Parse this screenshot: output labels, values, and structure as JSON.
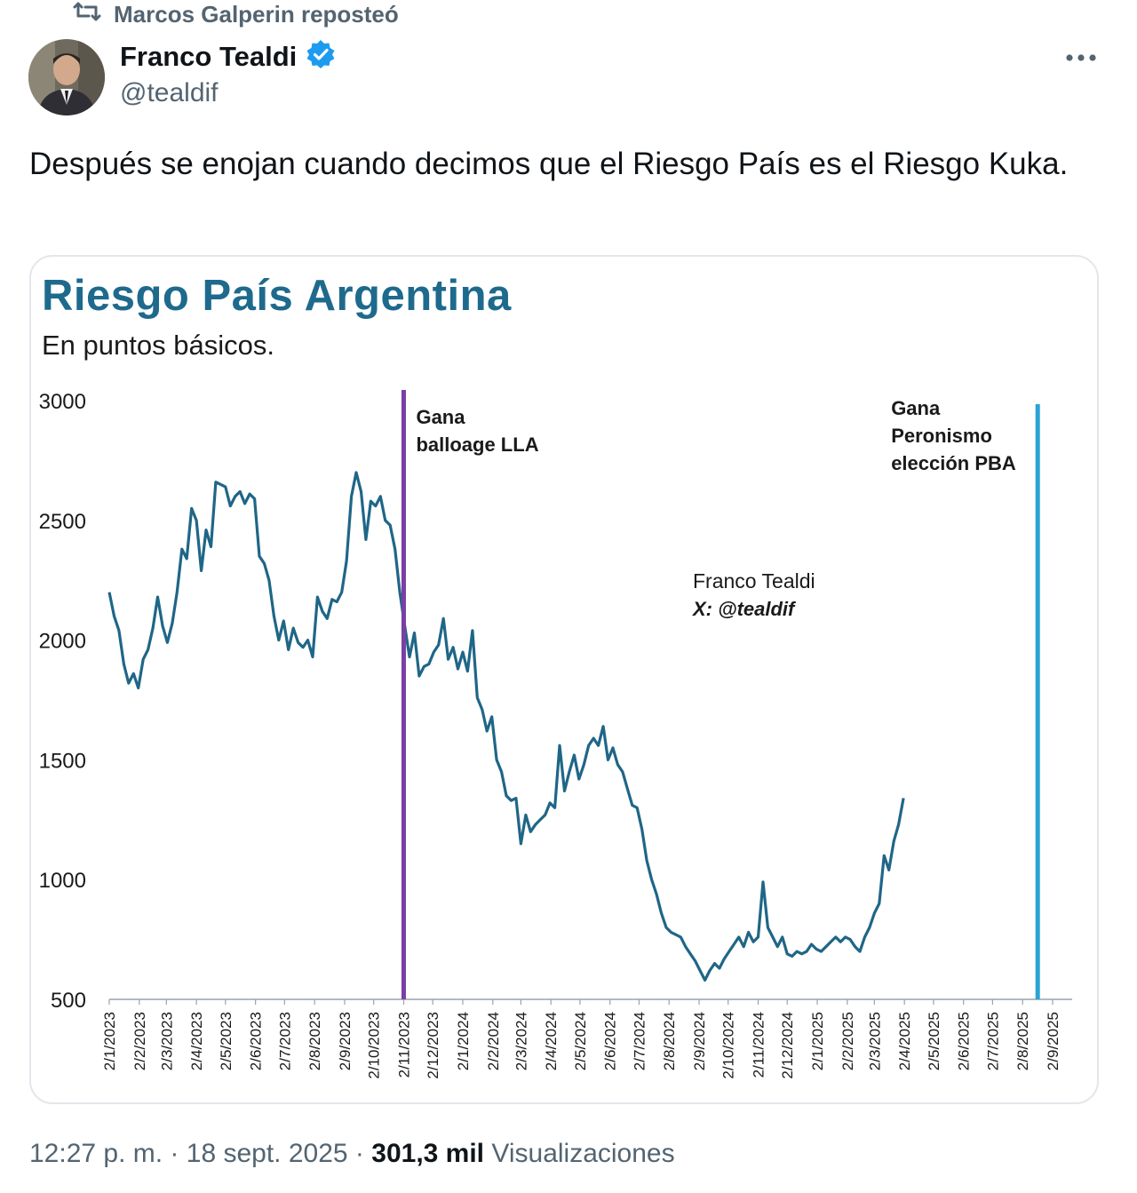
{
  "repost": {
    "text": "Marcos Galperin reposteó",
    "icon": "repost-icon"
  },
  "author": {
    "display_name": "Franco Tealdi",
    "handle": "@tealdif",
    "verified": true,
    "verified_color": "#1d9bf0",
    "avatar_icon": "avatar-photo"
  },
  "more_icon": "more-options-icon",
  "tweet": {
    "text": "Después se enojan cuando decimos que el Riesgo País es el Riesgo Kuka."
  },
  "chart_card": {
    "title": "Riesgo País Argentina",
    "subtitle": "En puntos básicos.",
    "watermark_name": "Franco Tealdi",
    "watermark_handle": "X: @tealdif",
    "title_color": "#1e6a8d",
    "line_color": "#1f6687"
  },
  "chart_data": {
    "type": "line",
    "title": "Riesgo País Argentina",
    "subtitle": "En puntos básicos.",
    "xlabel": "",
    "ylabel": "",
    "ylim": [
      500,
      3000
    ],
    "yticks": [
      3000,
      2500,
      2000,
      1500,
      1000,
      500
    ],
    "x_tick_labels": [
      "2/1/2023",
      "2/2/2023",
      "2/3/2023",
      "2/4/2023",
      "2/5/2023",
      "2/6/2023",
      "2/7/2023",
      "2/8/2023",
      "2/9/2023",
      "2/10/2023",
      "2/11/2023",
      "2/12/2023",
      "2/1/2024",
      "2/2/2024",
      "2/3/2024",
      "2/4/2024",
      "2/5/2024",
      "2/6/2024",
      "2/7/2024",
      "2/8/2024",
      "2/9/2024",
      "2/10/2024",
      "2/11/2024",
      "2/12/2024",
      "2/1/2025",
      "2/2/2025",
      "2/3/2025",
      "2/4/2025",
      "2/5/2025",
      "2/6/2025",
      "2/7/2025",
      "2/8/2025",
      "2/9/2025"
    ],
    "grid": false,
    "series": [
      {
        "color": "#1f6687",
        "points": [
          [
            "2023-01-02",
            2200
          ],
          [
            "2023-01-07",
            2100
          ],
          [
            "2023-01-12",
            2040
          ],
          [
            "2023-01-17",
            1900
          ],
          [
            "2023-01-22",
            1820
          ],
          [
            "2023-01-27",
            1860
          ],
          [
            "2023-02-01",
            1800
          ],
          [
            "2023-02-06",
            1920
          ],
          [
            "2023-02-11",
            1960
          ],
          [
            "2023-02-16",
            2050
          ],
          [
            "2023-02-21",
            2180
          ],
          [
            "2023-02-26",
            2060
          ],
          [
            "2023-03-03",
            1990
          ],
          [
            "2023-03-08",
            2070
          ],
          [
            "2023-03-13",
            2200
          ],
          [
            "2023-03-18",
            2380
          ],
          [
            "2023-03-23",
            2340
          ],
          [
            "2023-03-28",
            2550
          ],
          [
            "2023-04-02",
            2500
          ],
          [
            "2023-04-07",
            2290
          ],
          [
            "2023-04-12",
            2460
          ],
          [
            "2023-04-17",
            2390
          ],
          [
            "2023-04-22",
            2660
          ],
          [
            "2023-05-02",
            2640
          ],
          [
            "2023-05-07",
            2560
          ],
          [
            "2023-05-12",
            2600
          ],
          [
            "2023-05-17",
            2620
          ],
          [
            "2023-05-22",
            2570
          ],
          [
            "2023-05-27",
            2610
          ],
          [
            "2023-06-01",
            2590
          ],
          [
            "2023-06-06",
            2350
          ],
          [
            "2023-06-11",
            2320
          ],
          [
            "2023-06-16",
            2250
          ],
          [
            "2023-06-21",
            2100
          ],
          [
            "2023-06-26",
            2000
          ],
          [
            "2023-07-01",
            2080
          ],
          [
            "2023-07-06",
            1960
          ],
          [
            "2023-07-11",
            2050
          ],
          [
            "2023-07-16",
            1990
          ],
          [
            "2023-07-21",
            1970
          ],
          [
            "2023-07-26",
            2000
          ],
          [
            "2023-07-31",
            1930
          ],
          [
            "2023-08-05",
            2180
          ],
          [
            "2023-08-10",
            2120
          ],
          [
            "2023-08-15",
            2090
          ],
          [
            "2023-08-20",
            2170
          ],
          [
            "2023-08-25",
            2160
          ],
          [
            "2023-08-30",
            2200
          ],
          [
            "2023-09-04",
            2330
          ],
          [
            "2023-09-09",
            2600
          ],
          [
            "2023-09-14",
            2700
          ],
          [
            "2023-09-19",
            2620
          ],
          [
            "2023-09-24",
            2420
          ],
          [
            "2023-09-29",
            2580
          ],
          [
            "2023-10-04",
            2560
          ],
          [
            "2023-10-09",
            2600
          ],
          [
            "2023-10-14",
            2500
          ],
          [
            "2023-10-19",
            2480
          ],
          [
            "2023-10-24",
            2380
          ],
          [
            "2023-10-29",
            2200
          ],
          [
            "2023-11-03",
            2060
          ],
          [
            "2023-11-08",
            1930
          ],
          [
            "2023-11-13",
            2030
          ],
          [
            "2023-11-18",
            1850
          ],
          [
            "2023-11-23",
            1890
          ],
          [
            "2023-11-28",
            1900
          ],
          [
            "2023-12-03",
            1950
          ],
          [
            "2023-12-08",
            1980
          ],
          [
            "2023-12-13",
            2090
          ],
          [
            "2023-12-18",
            1920
          ],
          [
            "2023-12-23",
            1970
          ],
          [
            "2023-12-28",
            1880
          ],
          [
            "2024-01-02",
            1950
          ],
          [
            "2024-01-07",
            1870
          ],
          [
            "2024-01-12",
            2040
          ],
          [
            "2024-01-17",
            1760
          ],
          [
            "2024-01-22",
            1710
          ],
          [
            "2024-01-27",
            1620
          ],
          [
            "2024-02-01",
            1680
          ],
          [
            "2024-02-06",
            1500
          ],
          [
            "2024-02-11",
            1450
          ],
          [
            "2024-02-16",
            1350
          ],
          [
            "2024-02-21",
            1330
          ],
          [
            "2024-02-26",
            1340
          ],
          [
            "2024-03-02",
            1150
          ],
          [
            "2024-03-07",
            1270
          ],
          [
            "2024-03-12",
            1200
          ],
          [
            "2024-03-17",
            1230
          ],
          [
            "2024-03-22",
            1250
          ],
          [
            "2024-03-27",
            1270
          ],
          [
            "2024-04-01",
            1320
          ],
          [
            "2024-04-06",
            1300
          ],
          [
            "2024-04-11",
            1560
          ],
          [
            "2024-04-16",
            1370
          ],
          [
            "2024-04-21",
            1450
          ],
          [
            "2024-04-26",
            1520
          ],
          [
            "2024-05-01",
            1420
          ],
          [
            "2024-05-06",
            1480
          ],
          [
            "2024-05-11",
            1560
          ],
          [
            "2024-05-16",
            1590
          ],
          [
            "2024-05-21",
            1560
          ],
          [
            "2024-05-26",
            1640
          ],
          [
            "2024-05-31",
            1500
          ],
          [
            "2024-06-05",
            1550
          ],
          [
            "2024-06-10",
            1480
          ],
          [
            "2024-06-15",
            1450
          ],
          [
            "2024-06-20",
            1380
          ],
          [
            "2024-06-25",
            1310
          ],
          [
            "2024-06-30",
            1300
          ],
          [
            "2024-07-05",
            1210
          ],
          [
            "2024-07-10",
            1080
          ],
          [
            "2024-07-15",
            1000
          ],
          [
            "2024-07-20",
            940
          ],
          [
            "2024-07-25",
            860
          ],
          [
            "2024-07-30",
            800
          ],
          [
            "2024-08-04",
            780
          ],
          [
            "2024-08-09",
            770
          ],
          [
            "2024-08-14",
            760
          ],
          [
            "2024-08-19",
            720
          ],
          [
            "2024-08-24",
            690
          ],
          [
            "2024-08-29",
            660
          ],
          [
            "2024-09-03",
            620
          ],
          [
            "2024-09-08",
            580
          ],
          [
            "2024-09-13",
            620
          ],
          [
            "2024-09-18",
            650
          ],
          [
            "2024-09-23",
            630
          ],
          [
            "2024-09-28",
            670
          ],
          [
            "2024-10-03",
            700
          ],
          [
            "2024-10-08",
            730
          ],
          [
            "2024-10-13",
            760
          ],
          [
            "2024-10-18",
            720
          ],
          [
            "2024-10-23",
            780
          ],
          [
            "2024-10-28",
            740
          ],
          [
            "2024-11-02",
            760
          ],
          [
            "2024-11-07",
            990
          ],
          [
            "2024-11-12",
            800
          ],
          [
            "2024-11-17",
            760
          ],
          [
            "2024-11-22",
            720
          ],
          [
            "2024-11-27",
            760
          ],
          [
            "2024-12-02",
            690
          ],
          [
            "2024-12-07",
            680
          ],
          [
            "2024-12-12",
            700
          ],
          [
            "2024-12-17",
            690
          ],
          [
            "2024-12-22",
            700
          ],
          [
            "2024-12-27",
            730
          ],
          [
            "2025-01-01",
            710
          ],
          [
            "2025-01-06",
            700
          ],
          [
            "2025-01-11",
            720
          ],
          [
            "2025-01-16",
            740
          ],
          [
            "2025-01-21",
            760
          ],
          [
            "2025-01-26",
            740
          ],
          [
            "2025-01-31",
            760
          ],
          [
            "2025-02-05",
            750
          ],
          [
            "2025-02-10",
            720
          ],
          [
            "2025-02-15",
            700
          ],
          [
            "2025-02-20",
            760
          ],
          [
            "2025-02-25",
            800
          ],
          [
            "2025-03-02",
            860
          ],
          [
            "2025-03-07",
            900
          ],
          [
            "2025-03-12",
            1100
          ],
          [
            "2025-03-17",
            1040
          ],
          [
            "2025-03-22",
            1160
          ],
          [
            "2025-03-27",
            1230
          ],
          [
            "2025-04-01",
            1340
          ]
        ]
      }
    ],
    "markers": [
      {
        "x_tick": "2/11/2023",
        "color": "#7a3fa5",
        "label_lines": [
          "Gana",
          "balloage LLA"
        ]
      },
      {
        "x_tick": "2/8/2025",
        "color": "#2aa3d6",
        "label_lines": [
          "Gana",
          "Peronismo",
          "elección PBA"
        ]
      }
    ]
  },
  "footer": {
    "time": "12:27 p. m.",
    "date": "18 sept. 2025",
    "views_count": "301,3 mil",
    "views_label": "Visualizaciones"
  }
}
